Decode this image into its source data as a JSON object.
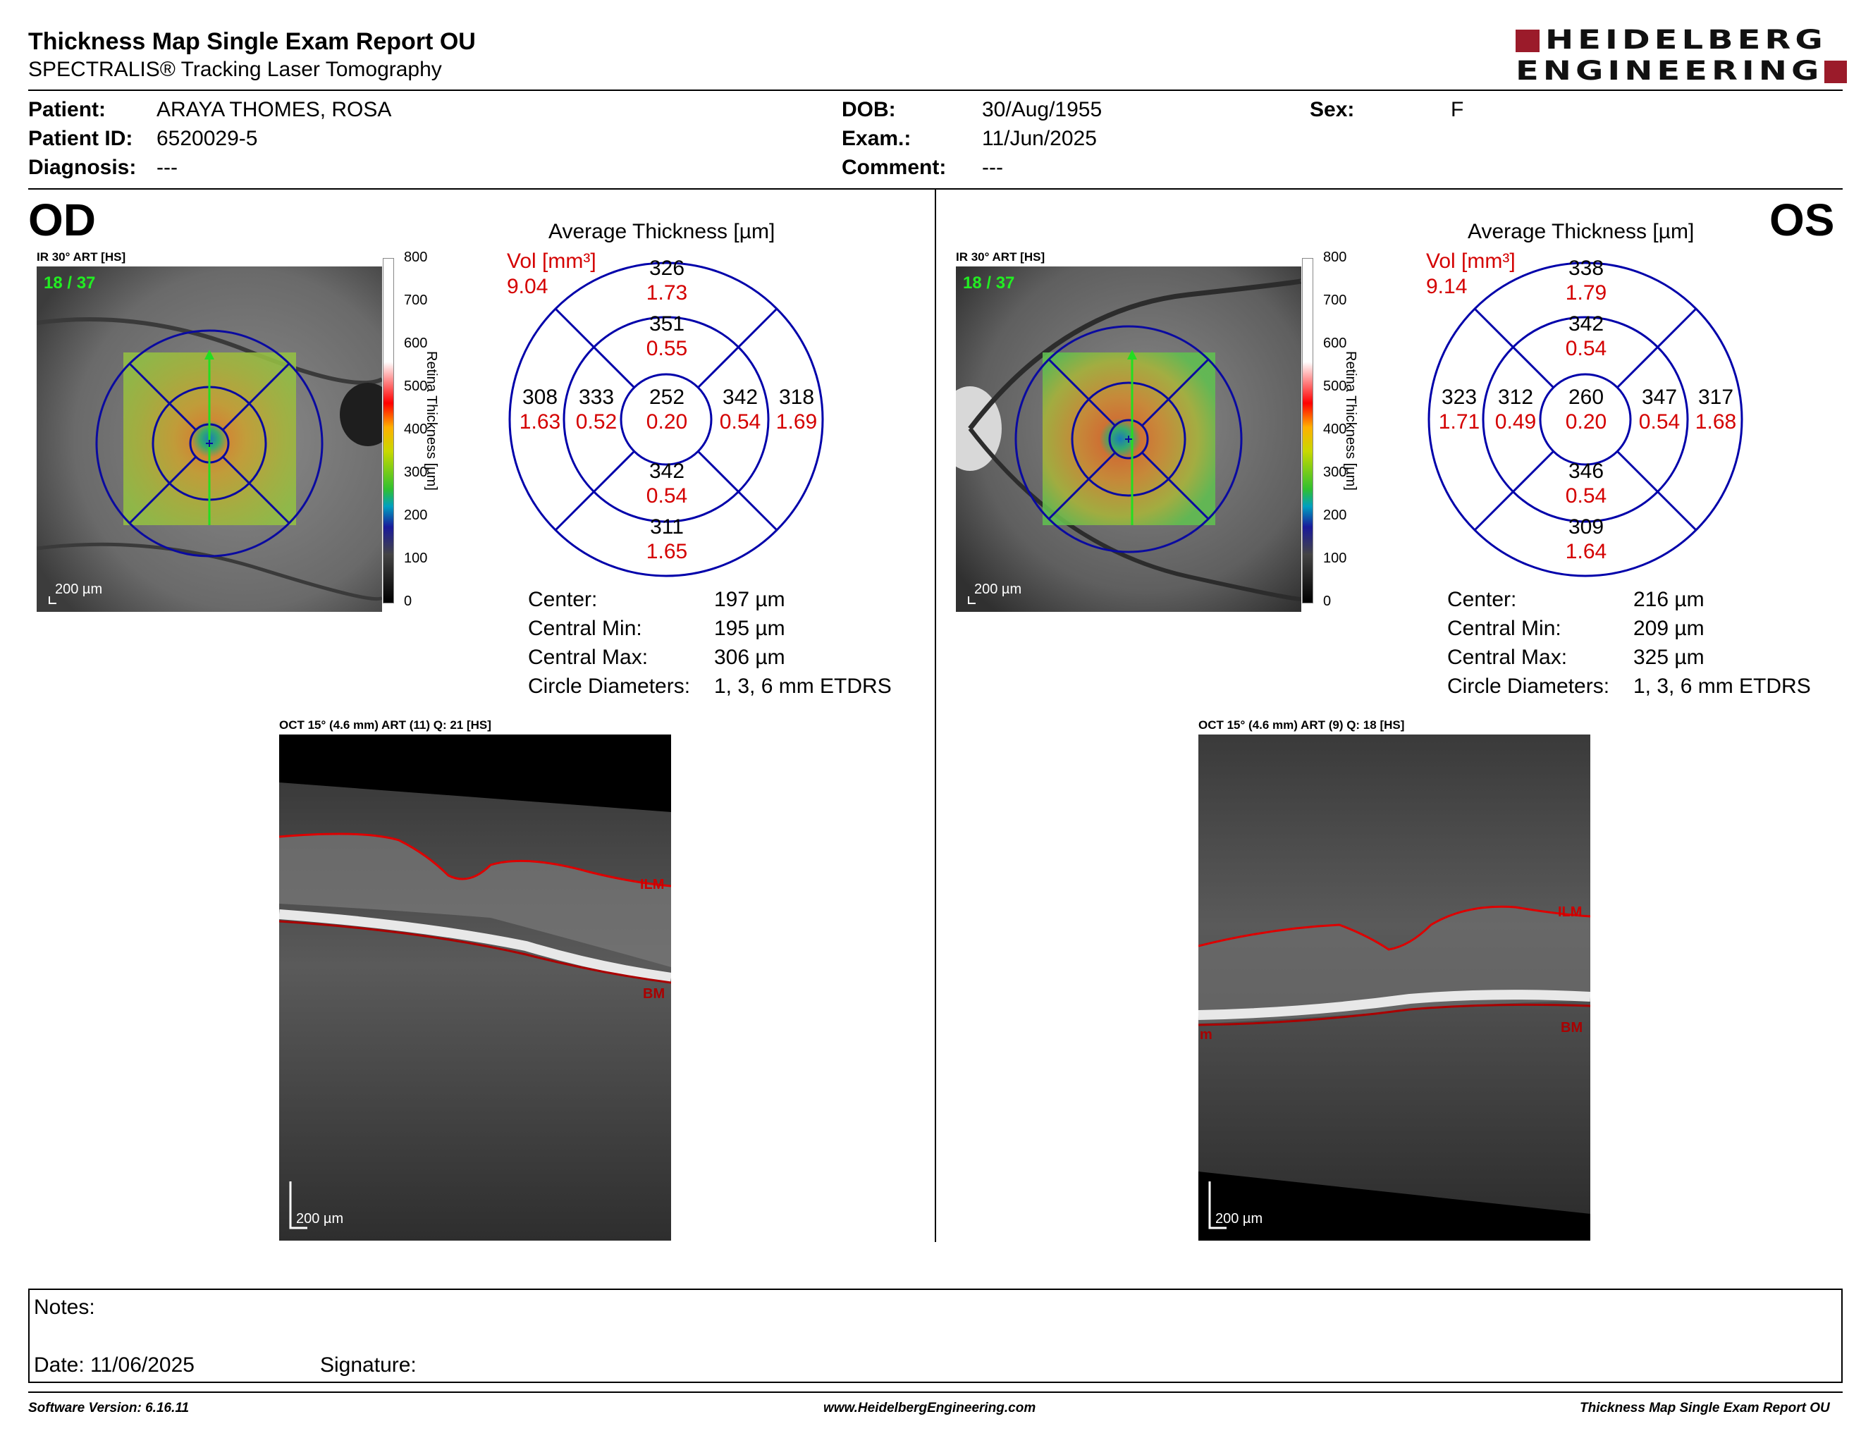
{
  "header": {
    "title": "Thickness Map Single Exam Report OU",
    "subtitle": "SPECTRALIS® Tracking Laser Tomography",
    "logo_line1": "HEIDELBERG",
    "logo_line2": "ENGINEERING"
  },
  "patient": {
    "patient_label": "Patient:",
    "patient_value": "ARAYA THOMES, ROSA",
    "id_label": "Patient ID:",
    "id_value": "6520029-5",
    "diagnosis_label": "Diagnosis:",
    "diagnosis_value": "---",
    "dob_label": "DOB:",
    "dob_value": "30/Aug/1955",
    "exam_label": "Exam.:",
    "exam_value": "11/Jun/2025",
    "comment_label": "Comment:",
    "comment_value": "---",
    "sex_label": "Sex:",
    "sex_value": "F"
  },
  "colorbar": {
    "ticks": [
      "800",
      "700",
      "600",
      "500",
      "400",
      "300",
      "200",
      "100",
      "0"
    ],
    "label": "Retina  Thickness [µm]"
  },
  "od": {
    "eye": "OD",
    "ir_label": "IR 30° ART [HS]",
    "frames": "18 / 37",
    "scale": "200 µm",
    "chart_title": "Average Thickness [µm]",
    "vol_label": "Vol [mm³]",
    "vol_value": "9.04",
    "sectors": {
      "outer_superior": {
        "t": "326",
        "v": "1.73"
      },
      "inner_superior": {
        "t": "351",
        "v": "0.55"
      },
      "outer_temporal": {
        "t": "308",
        "v": "1.63"
      },
      "inner_temporal": {
        "t": "333",
        "v": "0.52"
      },
      "center": {
        "t": "252",
        "v": "0.20"
      },
      "inner_nasal": {
        "t": "342",
        "v": "0.54"
      },
      "outer_nasal": {
        "t": "318",
        "v": "1.69"
      },
      "inner_inferior": {
        "t": "342",
        "v": "0.54"
      },
      "outer_inferior": {
        "t": "311",
        "v": "1.65"
      }
    },
    "stats": [
      {
        "label": "Center:",
        "value": "197 µm"
      },
      {
        "label": "Central Min:",
        "value": "195 µm"
      },
      {
        "label": "Central Max:",
        "value": "306 µm"
      },
      {
        "label": "Circle Diameters:",
        "value": "1, 3, 6 mm ETDRS"
      }
    ],
    "oct_label": "OCT 15° (4.6 mm) ART (11) Q: 21 [HS]",
    "oct_scale": "200 µm",
    "ilm": "ILM",
    "bm": "BM"
  },
  "os": {
    "eye": "OS",
    "ir_label": "IR 30° ART [HS]",
    "frames": "18 / 37",
    "scale": "200 µm",
    "chart_title": "Average Thickness [µm]",
    "vol_label": "Vol [mm³]",
    "vol_value": "9.14",
    "sectors": {
      "outer_superior": {
        "t": "338",
        "v": "1.79"
      },
      "inner_superior": {
        "t": "342",
        "v": "0.54"
      },
      "outer_temporal": {
        "t": "323",
        "v": "1.71"
      },
      "inner_temporal": {
        "t": "312",
        "v": "0.49"
      },
      "center": {
        "t": "260",
        "v": "0.20"
      },
      "inner_nasal": {
        "t": "347",
        "v": "0.54"
      },
      "outer_nasal": {
        "t": "317",
        "v": "1.68"
      },
      "inner_inferior": {
        "t": "346",
        "v": "0.54"
      },
      "outer_inferior": {
        "t": "309",
        "v": "1.64"
      }
    },
    "stats": [
      {
        "label": "Center:",
        "value": "216 µm"
      },
      {
        "label": "Central Min:",
        "value": "209 µm"
      },
      {
        "label": "Central Max:",
        "value": "325 µm"
      },
      {
        "label": "Circle Diameters:",
        "value": "1, 3, 6 mm ETDRS"
      }
    ],
    "oct_label": "OCT 15° (4.6 mm) ART (9) Q: 18 [HS]",
    "oct_scale": "200 µm",
    "ilm": "ILM",
    "bm": "BM",
    "left_marker": "m"
  },
  "notes": {
    "notes_label": "Notes:",
    "date_label": "Date: 11/06/2025",
    "signature_label": "Signature:"
  },
  "footer": {
    "software": "Software Version: 6.16.11",
    "website": "www.HeidelbergEngineering.com",
    "report": "Thickness Map Single Exam Report OU"
  }
}
